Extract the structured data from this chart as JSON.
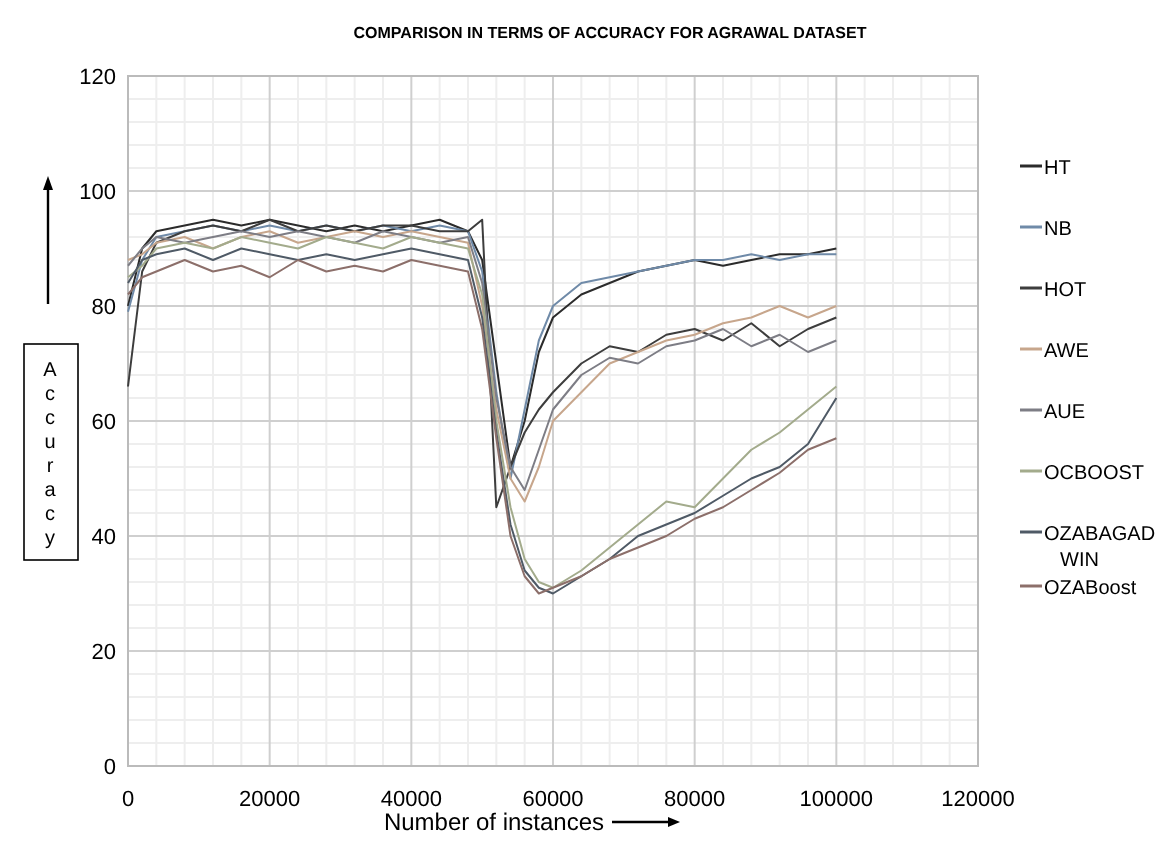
{
  "chart_data": {
    "type": "line",
    "title": "COMPARISON IN TERMS OF ACCURACY FOR AGRAWAL DATASET",
    "xlabel": "Number of instances",
    "ylabel": "Accuracy",
    "x": [
      0,
      2000,
      4000,
      8000,
      12000,
      16000,
      20000,
      24000,
      28000,
      32000,
      36000,
      40000,
      44000,
      48000,
      50000,
      52000,
      54000,
      56000,
      58000,
      60000,
      64000,
      68000,
      72000,
      76000,
      80000,
      84000,
      88000,
      92000,
      96000,
      100000
    ],
    "xlim": [
      0,
      120000
    ],
    "xticks": [
      0,
      20000,
      40000,
      60000,
      80000,
      100000,
      120000
    ],
    "ylim": [
      0,
      120
    ],
    "yticks": [
      0,
      20,
      40,
      60,
      80,
      100,
      120
    ],
    "grid": true,
    "legend": "right",
    "line_style": "solid",
    "marker": "none",
    "series": [
      {
        "name": "HT",
        "color": "#2b2b2b",
        "values": [
          80,
          90,
          93,
          94,
          95,
          94,
          95,
          94,
          93,
          94,
          93,
          94,
          95,
          93,
          88,
          70,
          52,
          60,
          72,
          78,
          82,
          84,
          86,
          87,
          88,
          87,
          88,
          89,
          89,
          90
        ]
      },
      {
        "name": "NB",
        "color": "#6f8aa8",
        "values": [
          79,
          88,
          92,
          93,
          94,
          93,
          94,
          93,
          94,
          93,
          94,
          93,
          94,
          93,
          86,
          65,
          50,
          62,
          74,
          80,
          84,
          85,
          86,
          87,
          88,
          88,
          89,
          88,
          89,
          89
        ]
      },
      {
        "name": "HOT",
        "color": "#3d3d3d",
        "values": [
          66,
          86,
          91,
          93,
          94,
          93,
          95,
          93,
          94,
          93,
          94,
          94,
          93,
          93,
          95,
          45,
          52,
          58,
          62,
          65,
          70,
          73,
          72,
          75,
          76,
          74,
          77,
          73,
          76,
          78
        ]
      },
      {
        "name": "AWE",
        "color": "#c7a68c",
        "values": [
          88,
          89,
          91,
          92,
          90,
          92,
          93,
          91,
          92,
          93,
          92,
          93,
          92,
          91,
          80,
          62,
          50,
          46,
          52,
          60,
          65,
          70,
          72,
          74,
          75,
          77,
          78,
          80,
          78,
          80
        ]
      },
      {
        "name": "AUE",
        "color": "#7d7d85",
        "values": [
          87,
          90,
          92,
          91,
          92,
          93,
          92,
          93,
          92,
          91,
          93,
          92,
          91,
          92,
          84,
          64,
          52,
          48,
          55,
          62,
          68,
          71,
          70,
          73,
          74,
          76,
          73,
          75,
          72,
          74
        ]
      },
      {
        "name": "OCBOOST",
        "color": "#a3ab8c",
        "values": [
          85,
          87,
          90,
          91,
          90,
          92,
          91,
          90,
          92,
          91,
          90,
          92,
          91,
          90,
          82,
          60,
          45,
          36,
          32,
          31,
          34,
          38,
          42,
          46,
          45,
          50,
          55,
          58,
          62,
          66
        ]
      },
      {
        "name": "OZABAGADWIN",
        "color": "#4f5a66",
        "values": [
          84,
          88,
          89,
          90,
          88,
          90,
          89,
          88,
          89,
          88,
          89,
          90,
          89,
          88,
          78,
          58,
          42,
          34,
          31,
          30,
          33,
          36,
          40,
          42,
          44,
          47,
          50,
          52,
          56,
          64
        ]
      },
      {
        "name": "OZABoost",
        "color": "#8c6f6a",
        "values": [
          82,
          85,
          86,
          88,
          86,
          87,
          85,
          88,
          86,
          87,
          86,
          88,
          87,
          86,
          76,
          57,
          40,
          33,
          30,
          31,
          33,
          36,
          38,
          40,
          43,
          45,
          48,
          51,
          55,
          57
        ]
      }
    ]
  }
}
